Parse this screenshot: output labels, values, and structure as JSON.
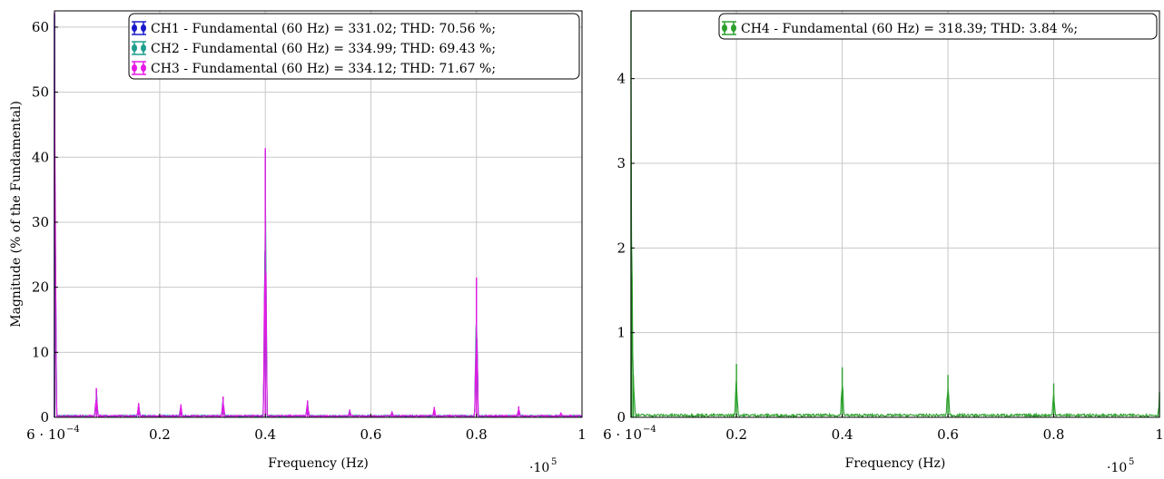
{
  "chart_data": [
    {
      "type": "line",
      "xlabel": "Frequency (Hz)",
      "ylabel": "Magnitude (% of the Fundamental)",
      "x_multiplier_label": "·10",
      "x_multiplier_exp": "5",
      "xlim": [
        0.0006,
        1.0
      ],
      "ylim": [
        0,
        62.5
      ],
      "xticks": [
        0.0006,
        0.2,
        0.4,
        0.6,
        0.8,
        1
      ],
      "xtick_labels": [
        "6 · 10",
        "0.2",
        "0.4",
        "0.6",
        "0.8",
        "1"
      ],
      "first_xtick_exp": "−4",
      "yticks": [
        0,
        10,
        20,
        30,
        40,
        50,
        60
      ],
      "ytick_labels": [
        "0",
        "10",
        "20",
        "30",
        "40",
        "50",
        "60"
      ],
      "grid": true,
      "legend_position": "top-right",
      "series": [
        {
          "name": "CH1 - Fundamental (60 Hz) = 331.02; THD: 70.56 %;",
          "color": "#1a1acc",
          "peaks": [
            [
              0.0006,
              62
            ],
            [
              0.08,
              4.2
            ],
            [
              0.16,
              2.0
            ],
            [
              0.24,
              1.8
            ],
            [
              0.32,
              3.0
            ],
            [
              0.4,
              41
            ],
            [
              0.48,
              2.4
            ],
            [
              0.56,
              1.1
            ],
            [
              0.64,
              0.8
            ],
            [
              0.72,
              1.4
            ],
            [
              0.8,
              21
            ],
            [
              0.88,
              1.5
            ],
            [
              0.96,
              0.6
            ]
          ]
        },
        {
          "name": "CH2 - Fundamental (60 Hz) = 334.99; THD: 69.43 %;",
          "color": "#1e9e8e",
          "peaks": [
            [
              0.0006,
              62
            ],
            [
              0.08,
              4.3
            ],
            [
              0.16,
              2.1
            ],
            [
              0.24,
              1.9
            ],
            [
              0.32,
              3.1
            ],
            [
              0.4,
              41.2
            ],
            [
              0.48,
              2.5
            ],
            [
              0.56,
              1.2
            ],
            [
              0.64,
              0.9
            ],
            [
              0.72,
              1.5
            ],
            [
              0.8,
              21.2
            ],
            [
              0.88,
              1.6
            ],
            [
              0.96,
              0.7
            ]
          ]
        },
        {
          "name": "CH3 - Fundamental (60 Hz) = 334.12; THD: 71.67 %;",
          "color": "#e619e6",
          "peaks": [
            [
              0.0006,
              62.3
            ],
            [
              0.08,
              4.5
            ],
            [
              0.16,
              2.2
            ],
            [
              0.24,
              2.0
            ],
            [
              0.32,
              3.2
            ],
            [
              0.4,
              41.4
            ],
            [
              0.48,
              2.6
            ],
            [
              0.56,
              1.2
            ],
            [
              0.64,
              0.9
            ],
            [
              0.72,
              1.6
            ],
            [
              0.8,
              21.5
            ],
            [
              0.88,
              1.7
            ],
            [
              0.96,
              0.7
            ]
          ]
        }
      ]
    },
    {
      "type": "line",
      "xlabel": "Frequency (Hz)",
      "ylabel": "",
      "x_multiplier_label": "·10",
      "x_multiplier_exp": "5",
      "xlim": [
        0.0006,
        1.0
      ],
      "ylim": [
        0,
        4.8
      ],
      "xticks": [
        0.0006,
        0.2,
        0.4,
        0.6,
        0.8,
        1
      ],
      "xtick_labels": [
        "6 · 10",
        "0.2",
        "0.4",
        "0.6",
        "0.8",
        "1"
      ],
      "first_xtick_exp": "−4",
      "yticks": [
        0,
        1,
        2,
        3,
        4
      ],
      "ytick_labels": [
        "0",
        "1",
        "2",
        "3",
        "4"
      ],
      "grid": true,
      "legend_position": "top-right",
      "series": [
        {
          "name": "CH4 - Fundamental (60 Hz) = 318.39; THD: 3.84 %;",
          "color": "#2ca02c",
          "peaks": [
            [
              0.0006,
              4.8
            ],
            [
              0.002,
              1.7
            ],
            [
              0.005,
              0.5
            ],
            [
              0.2,
              0.63
            ],
            [
              0.4,
              0.59
            ],
            [
              0.6,
              0.5
            ],
            [
              0.8,
              0.4
            ],
            [
              1.0,
              0.3
            ]
          ]
        }
      ]
    }
  ]
}
